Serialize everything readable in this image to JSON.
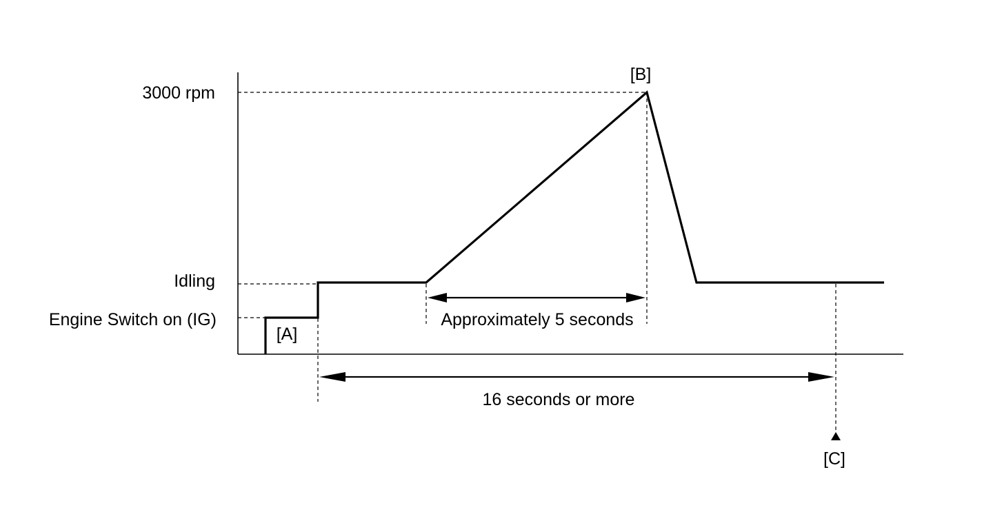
{
  "labels": {
    "level_3000": "3000 rpm",
    "level_idling": "Idling",
    "level_engine_switch": "Engine Switch on (IG)",
    "point_a": "[A]",
    "point_b": "[B]",
    "point_c": "[C]"
  },
  "dimensions": {
    "ramp_duration": "Approximately 5 seconds",
    "total_duration": "16 seconds or more"
  }
}
